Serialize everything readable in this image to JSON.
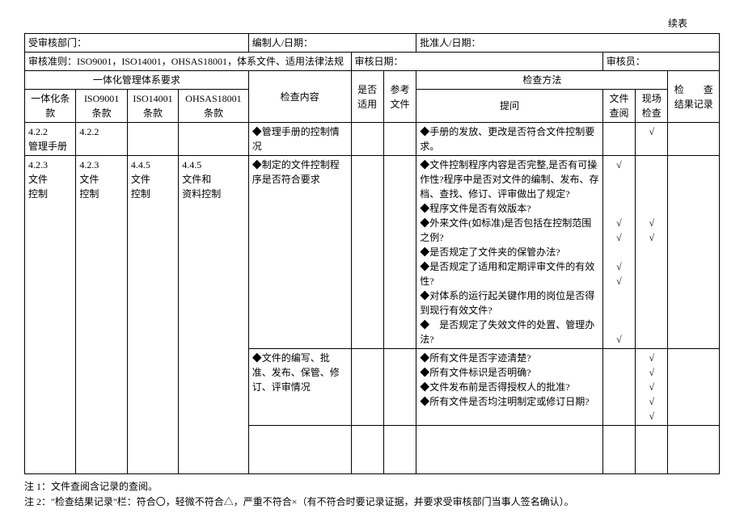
{
  "pageTitle": "续表",
  "headerFields": {
    "deptLabel": "受审核部门：",
    "deptValue": "",
    "preparedLabel": "编制人/日期：",
    "preparedValue": "",
    "approvedLabel": "批准人/日期：",
    "approvedValue": "",
    "criteriaLabel": "审核准则：",
    "criteriaValue": "ISO9001，ISO14001，OHSAS18001，体系文件、适用法律法规",
    "auditDateLabel": "审核日期：",
    "auditDateValue": "",
    "auditorLabel": "审核员：",
    "auditorValue": ""
  },
  "columnHeaders": {
    "integrated": "一体化管理体系要求",
    "col1": "一体化条款",
    "col2": "ISO9001条款",
    "col3": "ISO14001条款",
    "col4": "OHSAS18001条款",
    "checkContent": "检查内容",
    "applicable": "是否适用",
    "refDoc": "参考文件",
    "checkMethod": "检查方法",
    "question": "提问",
    "docReview": "文件查阅",
    "siteCheck": "现场检查",
    "resultRecord": "检　　查结果记录"
  },
  "rows": {
    "r1": {
      "c1": "4.2.2\n管理手册",
      "c2": "4.2.2",
      "c3": "",
      "c4": "",
      "content": "◆管理手册的控制情况",
      "applicable": "",
      "refDoc": "",
      "question": "◆手册的发放、更改是否符合文件控制要求。",
      "docReview": "",
      "siteCheck": "√",
      "result": ""
    },
    "r2": {
      "c1": "4.2.3\n文件\n控制",
      "c2": "4.2.3\n文件\n控制",
      "c3": "4.4.5\n文件\n控制",
      "c4": "4.4.5\n文件和\n资料控制",
      "content": "◆制定的文件控制程序是否符合要求",
      "question": "◆文件控制程序内容是否完整,是否有可操作性?程序中是否对文件的编制、发布、存档、查找、修订、评审做出了规定?\n◆程序文件是否有效版本?\n◆外来文件(如标准)是否包括在控制范围之例?\n◆是否规定了文件夹的保管办法?\n◆是否规定了适用和定期评审文件的有效性?\n◆对体系的运行起关键作用的岗位是否得到现行有效文件?\n◆　是否规定了失效文件的处置、管理办法?",
      "docReview": "√\n\n\n\n√\n√\n\n√\n√\n\n\n\n√",
      "siteCheck": "\n\n\n\n√\n√"
    },
    "r3": {
      "content": "◆文件的编写、批准、发布、保管、修订、评审情况",
      "question": "◆所有文件是否字迹清楚?\n◆所有文件标识是否明确?\n◆文件发布前是否得授权人的批准?\n◆所有文件是否均注明制定或修订日期?",
      "siteCheck": "√\n√\n√\n√\n√"
    }
  },
  "notes": {
    "n1": "注 1：文件查阅含记录的查阅。",
    "n2": "注 2：\"检查结果记录\"栏：符合〇，轻微不符合△，严重不符合×（有不符合时要记录证据，并要求受审核部门当事人签名确认）。"
  }
}
